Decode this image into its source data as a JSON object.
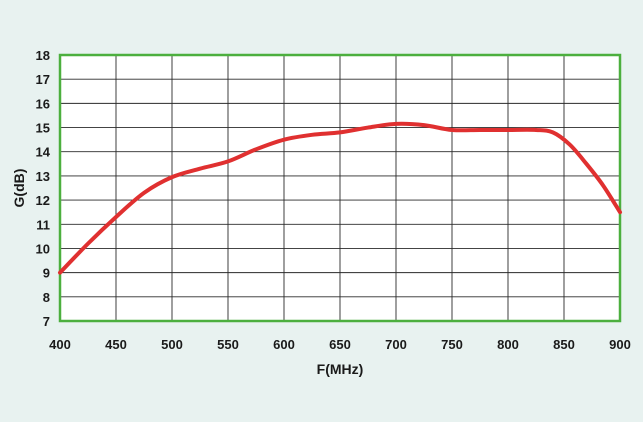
{
  "chart_data": {
    "type": "line",
    "title": "",
    "xlabel": "F(MHz)",
    "ylabel": "G(dB)",
    "xlim": [
      400,
      900
    ],
    "ylim": [
      7,
      18
    ],
    "x_ticks": [
      400,
      450,
      500,
      550,
      600,
      650,
      700,
      750,
      800,
      850,
      900
    ],
    "y_ticks": [
      7,
      8,
      9,
      10,
      11,
      12,
      13,
      14,
      15,
      16,
      17,
      18
    ],
    "grid": true,
    "series": [
      {
        "x": [
          400,
          425,
          450,
          475,
          500,
          525,
          550,
          575,
          600,
          625,
          650,
          675,
          700,
          725,
          750,
          775,
          800,
          825,
          840,
          855,
          870,
          885,
          900
        ],
        "y": [
          9.0,
          10.2,
          11.3,
          12.3,
          12.95,
          13.3,
          13.6,
          14.1,
          14.5,
          14.7,
          14.8,
          15.0,
          15.15,
          15.1,
          14.9,
          14.9,
          14.9,
          14.9,
          14.8,
          14.3,
          13.5,
          12.6,
          11.5
        ],
        "color": "#e03030"
      }
    ],
    "colors": {
      "plot_background": "#ffffff",
      "plot_border": "#4caf3e",
      "grid": "#2a2a2a",
      "line": "#e03030",
      "page_background": "#e8f2f0"
    }
  }
}
